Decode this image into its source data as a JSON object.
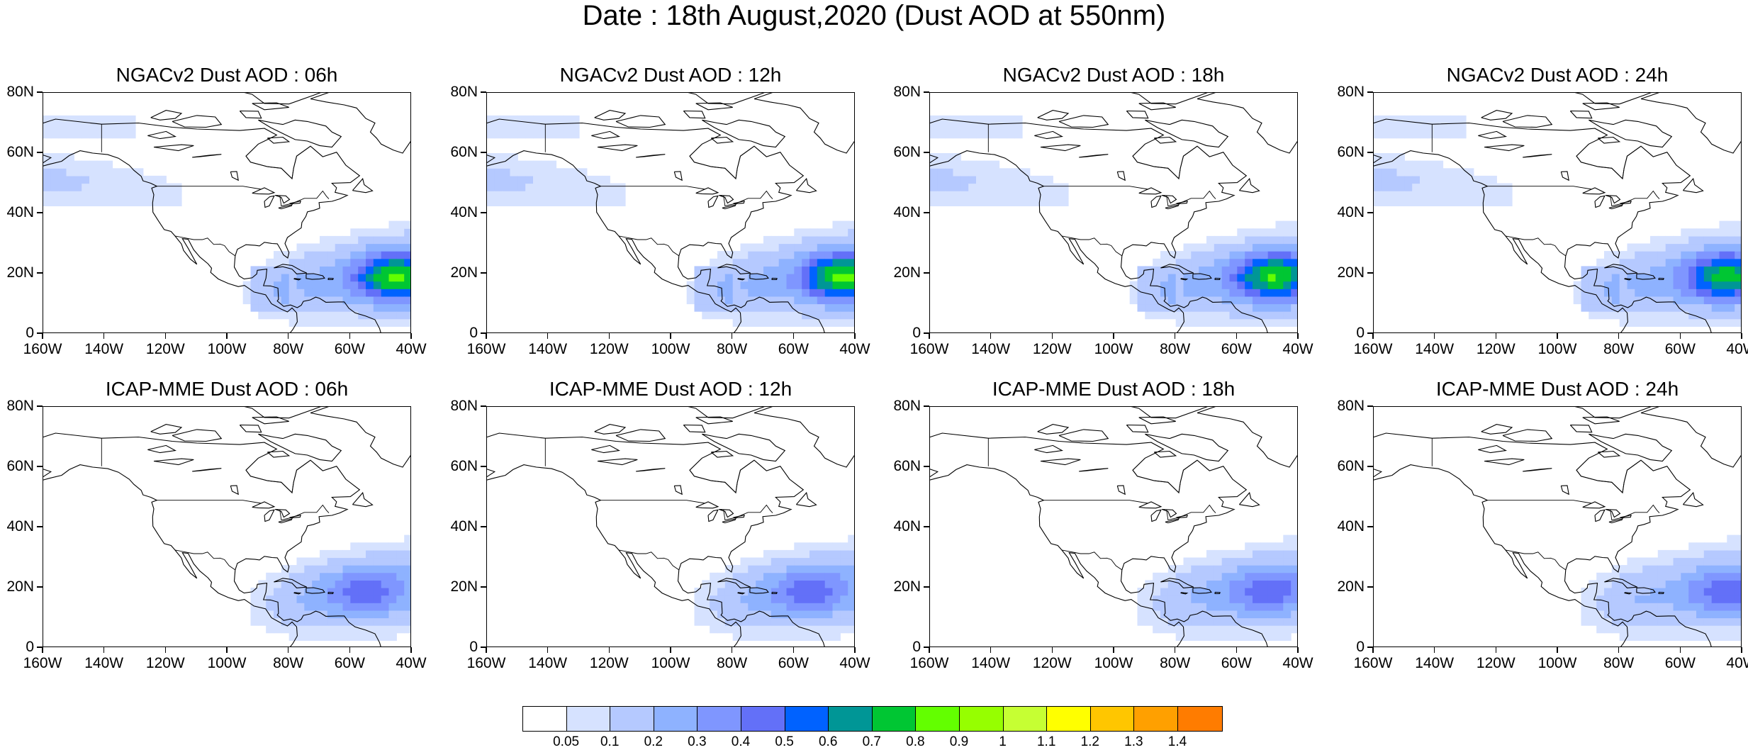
{
  "main_title": "Date : 18th August,2020 (Dust AOD at 550nm)",
  "panels": [
    {
      "title": "NGACv2 Dust AOD : 06h",
      "model": "NGACv2",
      "hour": "06h",
      "plume_intensity": 1.0,
      "plume_core_lon": -45,
      "pacific_band": true
    },
    {
      "title": "NGACv2 Dust AOD : 12h",
      "model": "NGACv2",
      "hour": "12h",
      "plume_intensity": 1.0,
      "plume_core_lon": -44,
      "pacific_band": true
    },
    {
      "title": "NGACv2 Dust AOD : 18h",
      "model": "NGACv2",
      "hour": "18h",
      "plume_intensity": 0.95,
      "plume_core_lon": -48,
      "pacific_band": true
    },
    {
      "title": "NGACv2 Dust AOD : 24h",
      "model": "NGACv2",
      "hour": "24h",
      "plume_intensity": 0.9,
      "plume_core_lon": -45,
      "pacific_band": true
    },
    {
      "title": "ICAP-MME Dust AOD : 06h",
      "model": "ICAP-MME",
      "hour": "06h",
      "plume_intensity": 0.45,
      "plume_core_lon": -55,
      "pacific_band": false
    },
    {
      "title": "ICAP-MME Dust AOD : 12h",
      "model": "ICAP-MME",
      "hour": "12h",
      "plume_intensity": 0.45,
      "plume_core_lon": -55,
      "pacific_band": false
    },
    {
      "title": "ICAP-MME Dust AOD : 18h",
      "model": "ICAP-MME",
      "hour": "18h",
      "plume_intensity": 0.45,
      "plume_core_lon": -50,
      "pacific_band": false
    },
    {
      "title": "ICAP-MME Dust AOD : 24h",
      "model": "ICAP-MME",
      "hour": "24h",
      "plume_intensity": 0.45,
      "plume_core_lon": -45,
      "pacific_band": false
    }
  ],
  "axes": {
    "lat_labels": [
      "80N",
      "60N",
      "40N",
      "20N",
      "0"
    ],
    "lat_values": [
      80,
      60,
      40,
      20,
      0
    ],
    "lon_labels": [
      "160W",
      "140W",
      "120W",
      "100W",
      "80W",
      "60W",
      "40W"
    ],
    "lon_values": [
      -160,
      -140,
      -120,
      -100,
      -80,
      -60,
      -40
    ],
    "lon_range": [
      -160,
      -40
    ],
    "lat_range": [
      0,
      80
    ]
  },
  "colorbar": {
    "labels": [
      "0.05",
      "0.1",
      "0.2",
      "0.3",
      "0.4",
      "0.5",
      "0.6",
      "0.7",
      "0.8",
      "0.9",
      "1",
      "1.1",
      "1.2",
      "1.3",
      "1.4"
    ],
    "colors": [
      "#ffffff",
      "#d6e2ff",
      "#b5c9ff",
      "#8eb2ff",
      "#7f96ff",
      "#6370f8",
      "#0062ff",
      "#009696",
      "#00c633",
      "#63ff00",
      "#96ff00",
      "#c6ff33",
      "#ffff00",
      "#ffc600",
      "#ffa000",
      "#ff7c00",
      "#ff1900"
    ]
  }
}
